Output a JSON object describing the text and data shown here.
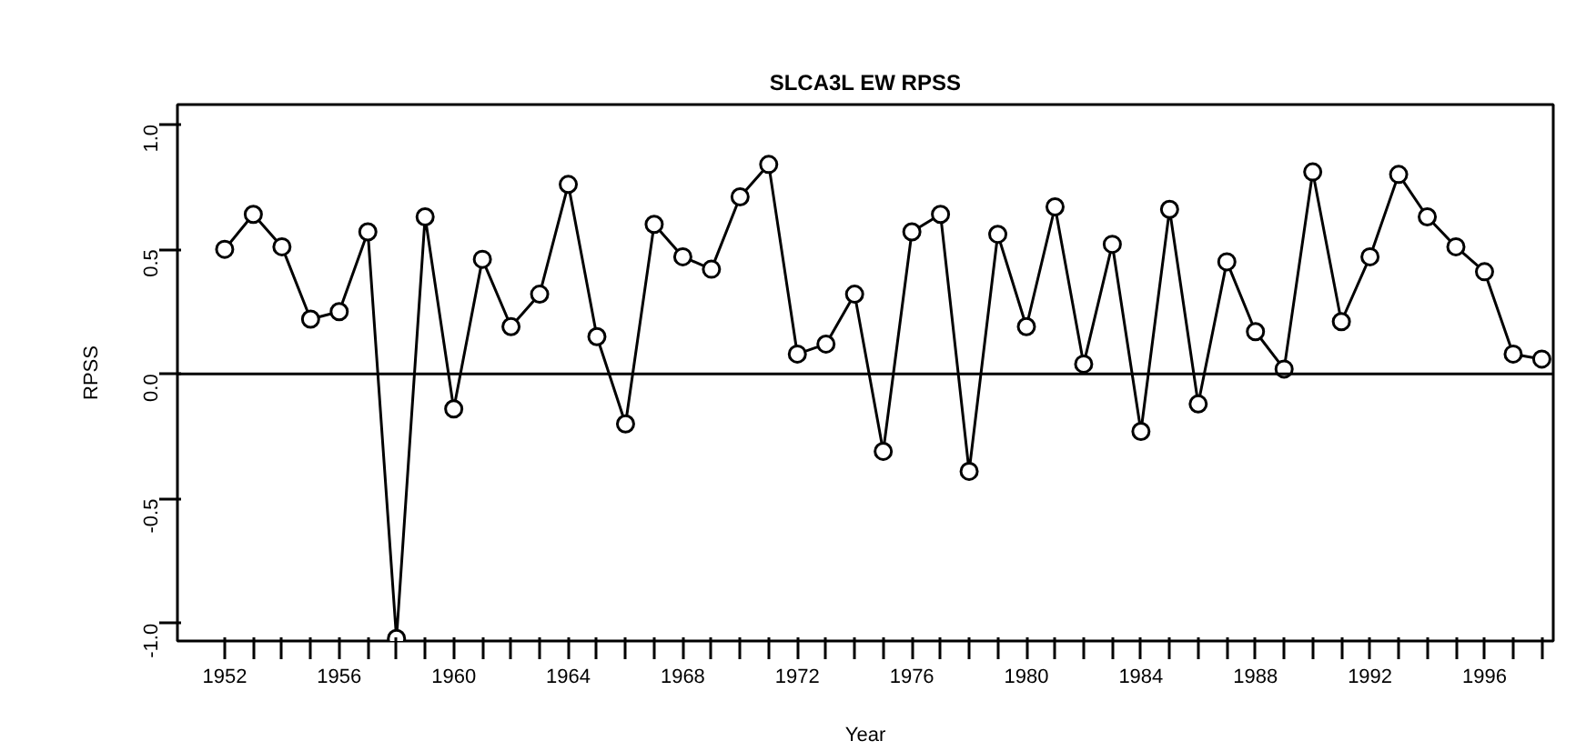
{
  "chart_data": {
    "type": "line",
    "title": "SLCA3L EW RPSS",
    "xlabel": "Year",
    "ylabel": "RPSS",
    "x": [
      1952,
      1953,
      1954,
      1955,
      1956,
      1957,
      1958,
      1959,
      1960,
      1961,
      1962,
      1963,
      1964,
      1965,
      1966,
      1967,
      1968,
      1969,
      1970,
      1971,
      1972,
      1973,
      1974,
      1975,
      1976,
      1977,
      1978,
      1979,
      1980,
      1981,
      1982,
      1983,
      1984,
      1985,
      1986,
      1987,
      1988,
      1989,
      1990,
      1991,
      1992,
      1993,
      1994,
      1995,
      1996,
      1997,
      1998
    ],
    "series": [
      {
        "color": "#000000",
        "values": [
          0.5,
          0.64,
          0.51,
          0.22,
          0.25,
          0.57,
          -1.06,
          0.63,
          -0.14,
          0.46,
          0.19,
          0.32,
          0.76,
          0.15,
          -0.2,
          0.6,
          0.47,
          0.42,
          0.71,
          0.84,
          0.08,
          0.12,
          0.32,
          -0.31,
          0.57,
          0.64,
          -0.39,
          0.56,
          0.19,
          0.67,
          0.04,
          0.52,
          -0.23,
          0.66,
          -0.12,
          0.45,
          0.17,
          0.02,
          0.81,
          0.21,
          0.47,
          0.8,
          0.63,
          0.51,
          0.41,
          0.08,
          0.06
        ]
      }
    ],
    "xlim": [
      1950.35,
      1998.4
    ],
    "ylim": [
      -1.07,
      1.08
    ],
    "xticks": [
      1952,
      {
        "value": 1953,
        "label": null
      },
      {
        "value": 1954,
        "label": null
      },
      {
        "value": 1955,
        "label": null
      },
      1956,
      {
        "value": 1957,
        "label": null
      },
      {
        "value": 1958,
        "label": null
      },
      {
        "value": 1959,
        "label": null
      },
      1960,
      {
        "value": 1961,
        "label": null
      },
      {
        "value": 1962,
        "label": null
      },
      {
        "value": 1963,
        "label": null
      },
      1964,
      {
        "value": 1965,
        "label": null
      },
      {
        "value": 1966,
        "label": null
      },
      {
        "value": 1967,
        "label": null
      },
      1968,
      {
        "value": 1969,
        "label": null
      },
      {
        "value": 1970,
        "label": null
      },
      {
        "value": 1971,
        "label": null
      },
      1972,
      {
        "value": 1973,
        "label": null
      },
      {
        "value": 1974,
        "label": null
      },
      {
        "value": 1975,
        "label": null
      },
      1976,
      {
        "value": 1977,
        "label": null
      },
      {
        "value": 1978,
        "label": null
      },
      {
        "value": 1979,
        "label": null
      },
      1980,
      {
        "value": 1981,
        "label": null
      },
      {
        "value": 1982,
        "label": null
      },
      {
        "value": 1983,
        "label": null
      },
      1984,
      {
        "value": 1985,
        "label": null
      },
      {
        "value": 1986,
        "label": null
      },
      {
        "value": 1987,
        "label": null
      },
      1988,
      {
        "value": 1989,
        "label": null
      },
      {
        "value": 1990,
        "label": null
      },
      {
        "value": 1991,
        "label": null
      },
      1992,
      {
        "value": 1993,
        "label": null
      },
      {
        "value": 1994,
        "label": null
      },
      {
        "value": 1995,
        "label": null
      },
      1996,
      {
        "value": 1997,
        "label": null
      },
      {
        "value": 1998,
        "label": null
      }
    ],
    "yticks": [
      {
        "value": -1,
        "label": "-1.0"
      },
      {
        "value": -0.5,
        "label": "-0.5"
      },
      {
        "value": 0,
        "label": "0.0"
      },
      {
        "value": 0.5,
        "label": "0.5"
      },
      {
        "value": 1,
        "label": "1.0"
      }
    ],
    "ref_lines": [
      {
        "axis": "y",
        "value": 0,
        "color": "#000000"
      }
    ],
    "grid": false,
    "marker": "circle",
    "line_style": "solid"
  }
}
